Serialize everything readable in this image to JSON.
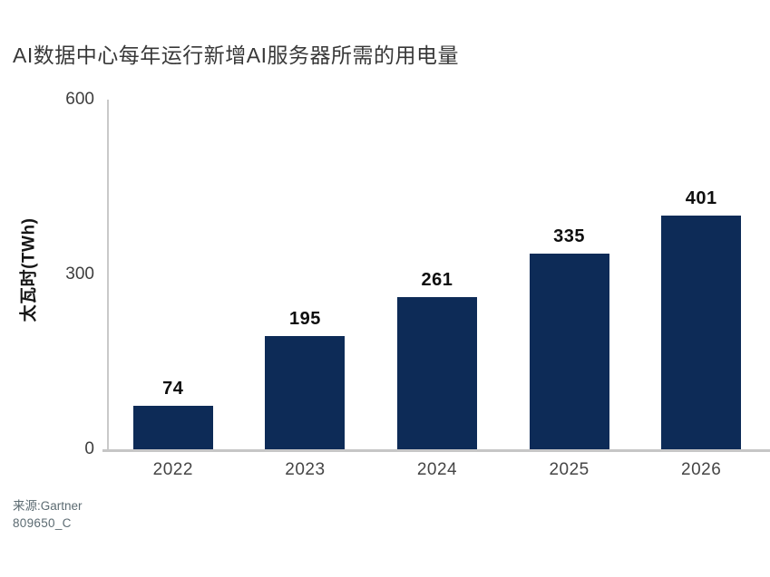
{
  "page": {
    "background": "#FFFFFF"
  },
  "colors": {
    "bar": "#0D2B57",
    "axis_line": "#C9C9C9",
    "title_text": "#383838",
    "tick_text": "#3E3E3E",
    "value_label_text": "#0E0E0E",
    "source_text": "#5C6B72"
  },
  "chart_data": {
    "type": "bar",
    "title": "AI数据中心每年运行新增AI服务器所需的用电量",
    "ylabel": "太瓦时(TWh)",
    "xlabel": "",
    "categories": [
      "2022",
      "2023",
      "2024",
      "2025",
      "2026"
    ],
    "values": [
      74,
      195,
      261,
      335,
      401
    ],
    "data_labels": [
      "74",
      "195",
      "261",
      "335",
      "401"
    ],
    "ylim": [
      0,
      600
    ],
    "yticks": [
      0,
      300,
      600
    ],
    "grid": false,
    "legend": "none",
    "bar_color": "#0D2B57"
  },
  "footer": {
    "source": "来源:Gartner",
    "doc_id": "809650_C"
  }
}
